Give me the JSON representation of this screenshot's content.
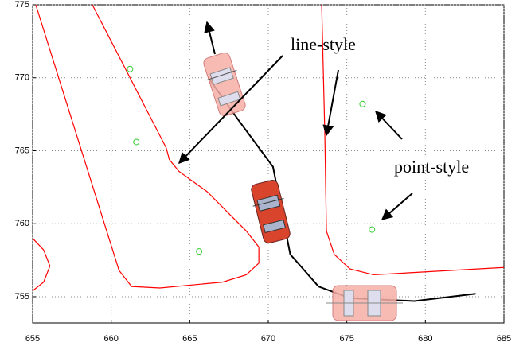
{
  "chart_data": {
    "type": "line",
    "xlim": [
      655,
      685
    ],
    "ylim": [
      753.2,
      775
    ],
    "xticks": [
      655,
      660,
      665,
      670,
      675,
      680,
      685
    ],
    "yticks": [
      755,
      760,
      765,
      770,
      775
    ],
    "grid": true,
    "annotations": [
      "line-style",
      "point-style"
    ],
    "series": [
      {
        "color": "#ff0000",
        "mode": "line",
        "x": [
          658.8,
          663.5,
          663.7,
          664.3,
          666.1,
          668.6,
          669.4,
          669.4,
          668.6,
          667.1,
          663.1,
          661.3,
          660.5,
          655.2,
          null,
          655,
          655.7,
          656.1,
          655.7,
          655,
          null,
          673.4,
          673.6,
          673.7,
          674.2,
          675.2,
          676.7,
          685
        ],
        "y": [
          775,
          765.2,
          764.4,
          763.6,
          762.2,
          759.5,
          758.4,
          757.3,
          756.5,
          756.0,
          755.6,
          755.7,
          756.8,
          775,
          null,
          759.0,
          758.2,
          757.1,
          756.0,
          755.4,
          null,
          775,
          766.1,
          759.5,
          757.9,
          756.9,
          756.5,
          757.0
        ]
      },
      {
        "color": "#000000",
        "mode": "line",
        "x": [
          666.25,
          668.1,
          670.3,
          670.9,
          671.4,
          673.2,
          675.2,
          679.3,
          683.2
        ],
        "y": [
          769.9,
          767.1,
          763.9,
          760.6,
          757.9,
          755.7,
          754.9,
          754.7,
          755.2
        ]
      },
      {
        "color": "#33cc33",
        "mode": "points",
        "x": [
          661.2,
          661.6,
          665.6,
          676.0,
          676.6
        ],
        "y": [
          770.6,
          765.6,
          758.1,
          768.2,
          759.6
        ]
      }
    ]
  }
}
